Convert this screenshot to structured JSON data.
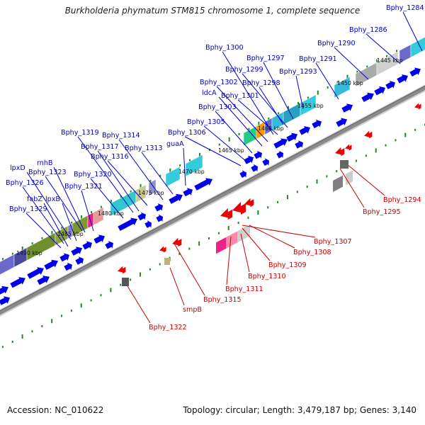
{
  "title": "Burkholderia phymatum STM815 chromosome 1, complete sequence",
  "footer": {
    "accession": "Accession: NC_010622",
    "topology": "Topology: circular; Length: 3,479,187 bp; Genes: 3,140"
  },
  "colors": {
    "forward_label": "#0000cc",
    "reverse_label": "#cc0000",
    "backbone": "#777777",
    "tick": "#228822",
    "cds_arrow": "#0000ee",
    "reverse_arrow": "#ee0000"
  },
  "kbp_labels": [
    "1445 kbp",
    "1450 kbp",
    "1455 kbp",
    "1460 kbp",
    "1465 kbp",
    "1470 kbp",
    "1475 kbp",
    "1480 kbp",
    "1485 kbp",
    "1490 kbp"
  ],
  "forward_genes": [
    "Bphy_1284",
    "Bphy_1286",
    "Bphy_1290",
    "Bphy_1291",
    "Bphy_1293",
    "Bphy_1297",
    "Bphy_1298",
    "Bphy_1299",
    "Bphy_1300",
    "Bphy_1301",
    "Bphy_1302",
    "ldcA",
    "Bphy_1303",
    "Bphy_1305",
    "Bphy_1306",
    "guaA",
    "Bphy_1313",
    "Bphy_1314",
    "Bphy_1316",
    "Bphy_1317",
    "Bphy_1319",
    "Bphy_1320",
    "Bphy_1321",
    "Bphy_1323",
    "rnhB",
    "lpxD",
    "Bphy_1326",
    "fabZ",
    "lpxB",
    "Bphy_1329"
  ],
  "reverse_genes": [
    "Bphy_1294",
    "Bphy_1295",
    "Bphy_1307",
    "Bphy_1308",
    "Bphy_1309",
    "Bphy_1310",
    "Bphy_1311",
    "Bphy_1315",
    "smpB",
    "Bphy_1322"
  ]
}
